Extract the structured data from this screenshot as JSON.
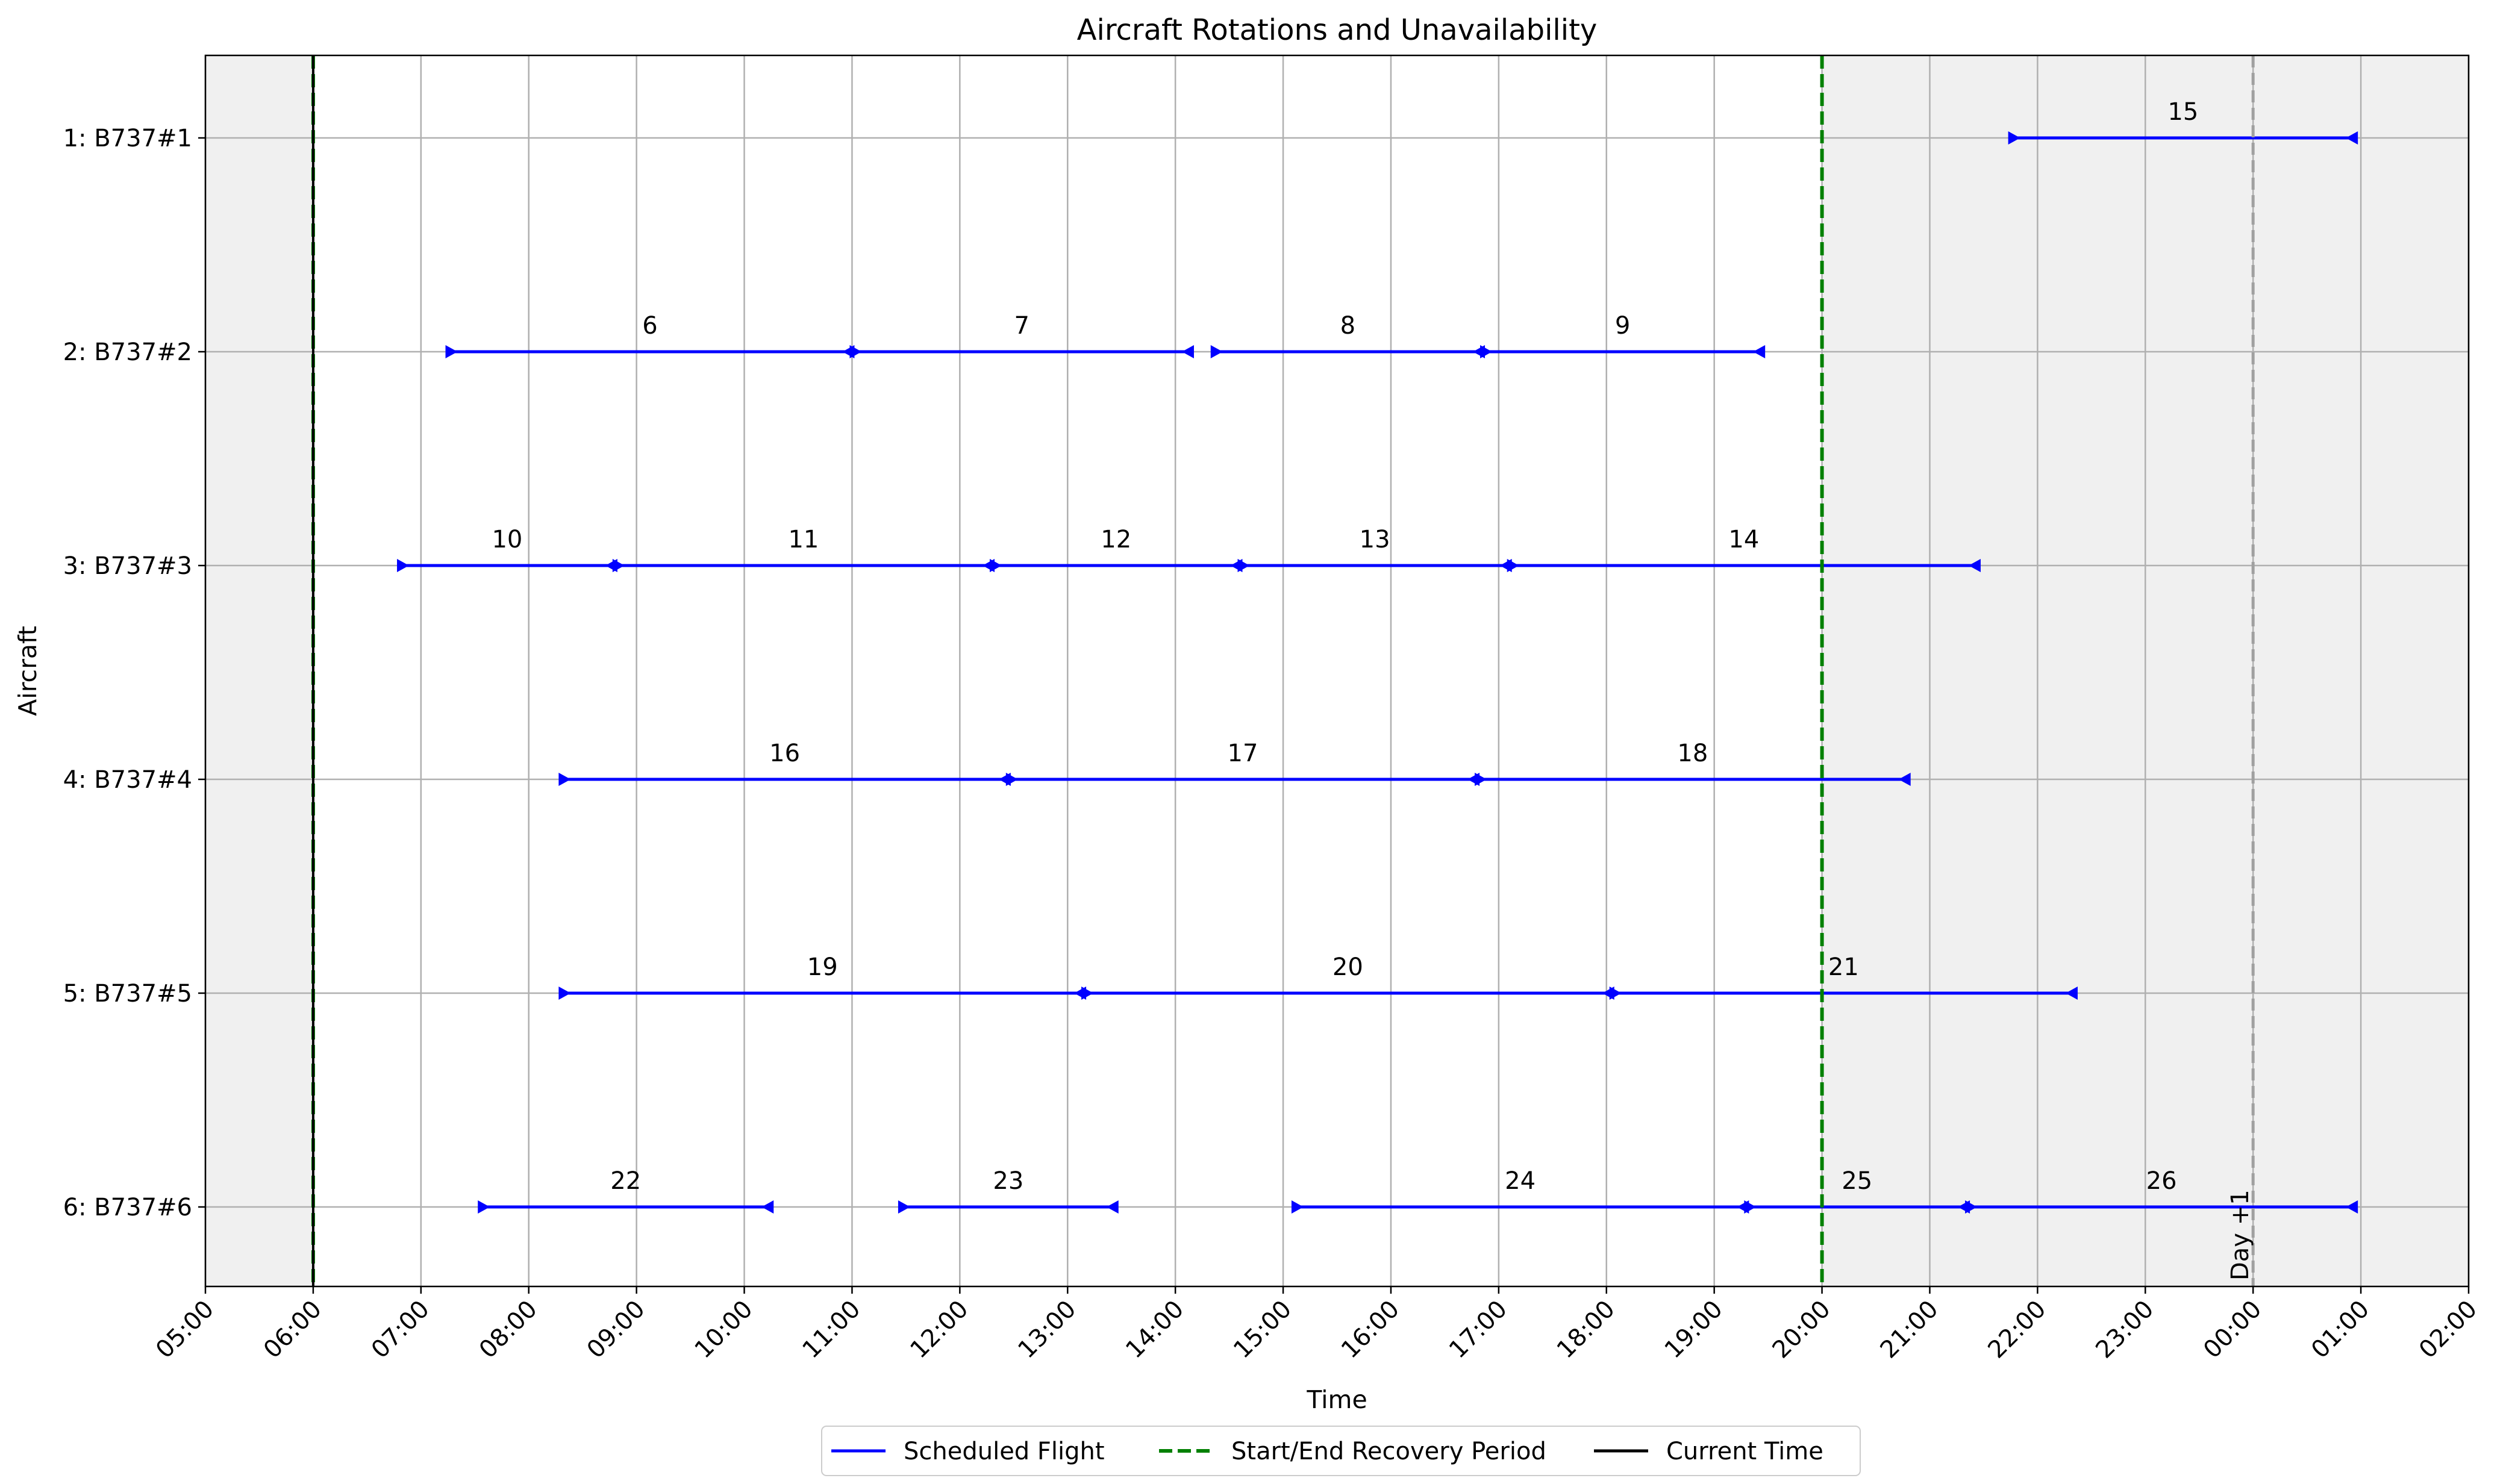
{
  "chart_data": {
    "type": "gantt",
    "title": "Aircraft Rotations and Unavailability",
    "xlabel": "Time",
    "ylabel": "Aircraft",
    "x_ticks": [
      "05:00",
      "06:00",
      "07:00",
      "08:00",
      "09:00",
      "10:00",
      "11:00",
      "12:00",
      "13:00",
      "14:00",
      "15:00",
      "16:00",
      "17:00",
      "18:00",
      "19:00",
      "20:00",
      "21:00",
      "22:00",
      "23:00",
      "00:00",
      "01:00",
      "02:00"
    ],
    "x_range_hours": [
      5,
      26
    ],
    "aircraft": [
      "1: B737#1",
      "2: B737#2",
      "3: B737#3",
      "4: B737#4",
      "5: B737#5",
      "6: B737#6"
    ],
    "current_time_hour": 6,
    "recovery_start_hour": 6,
    "recovery_end_hour": 20,
    "day_marker_hour": 24,
    "day_marker_label": "Day +1",
    "grid": true,
    "colors": {
      "flight": "#0000ff",
      "recovery": "#008000",
      "current": "#000000",
      "shade": "#f0f0f0",
      "day_marker": "#a0a0a0",
      "grid": "#b0b0b0"
    },
    "flights": [
      {
        "id": "15",
        "aircraft": 0,
        "dep": 21.75,
        "arr": 24.95
      },
      {
        "id": "6",
        "aircraft": 1,
        "dep": 7.25,
        "arr": 11.0
      },
      {
        "id": "7",
        "aircraft": 1,
        "dep": 11.0,
        "arr": 14.15
      },
      {
        "id": "8",
        "aircraft": 1,
        "dep": 14.35,
        "arr": 16.85
      },
      {
        "id": "9",
        "aircraft": 1,
        "dep": 16.85,
        "arr": 19.45
      },
      {
        "id": "10",
        "aircraft": 2,
        "dep": 6.8,
        "arr": 8.8
      },
      {
        "id": "11",
        "aircraft": 2,
        "dep": 8.8,
        "arr": 12.3
      },
      {
        "id": "12",
        "aircraft": 2,
        "dep": 12.3,
        "arr": 14.6
      },
      {
        "id": "13",
        "aircraft": 2,
        "dep": 14.6,
        "arr": 17.1
      },
      {
        "id": "14",
        "aircraft": 2,
        "dep": 17.1,
        "arr": 21.45
      },
      {
        "id": "16",
        "aircraft": 3,
        "dep": 8.3,
        "arr": 12.45
      },
      {
        "id": "17",
        "aircraft": 3,
        "dep": 12.45,
        "arr": 16.8
      },
      {
        "id": "18",
        "aircraft": 3,
        "dep": 16.8,
        "arr": 20.8
      },
      {
        "id": "19",
        "aircraft": 4,
        "dep": 8.3,
        "arr": 13.15
      },
      {
        "id": "20",
        "aircraft": 4,
        "dep": 13.15,
        "arr": 18.05
      },
      {
        "id": "21",
        "aircraft": 4,
        "dep": 18.05,
        "arr": 22.35
      },
      {
        "id": "22",
        "aircraft": 5,
        "dep": 7.55,
        "arr": 10.25
      },
      {
        "id": "23",
        "aircraft": 5,
        "dep": 11.45,
        "arr": 13.45
      },
      {
        "id": "24",
        "aircraft": 5,
        "dep": 15.1,
        "arr": 19.3
      },
      {
        "id": "25",
        "aircraft": 5,
        "dep": 19.3,
        "arr": 21.35
      },
      {
        "id": "26",
        "aircraft": 5,
        "dep": 21.35,
        "arr": 24.95
      }
    ],
    "legend": {
      "placement": "bottom-center",
      "entries": [
        {
          "label": "Scheduled Flight",
          "style": "solid",
          "color": "#0000ff"
        },
        {
          "label": "Start/End Recovery Period",
          "style": "dashed",
          "color": "#008000"
        },
        {
          "label": "Current Time",
          "style": "solid",
          "color": "#000000"
        }
      ]
    }
  }
}
